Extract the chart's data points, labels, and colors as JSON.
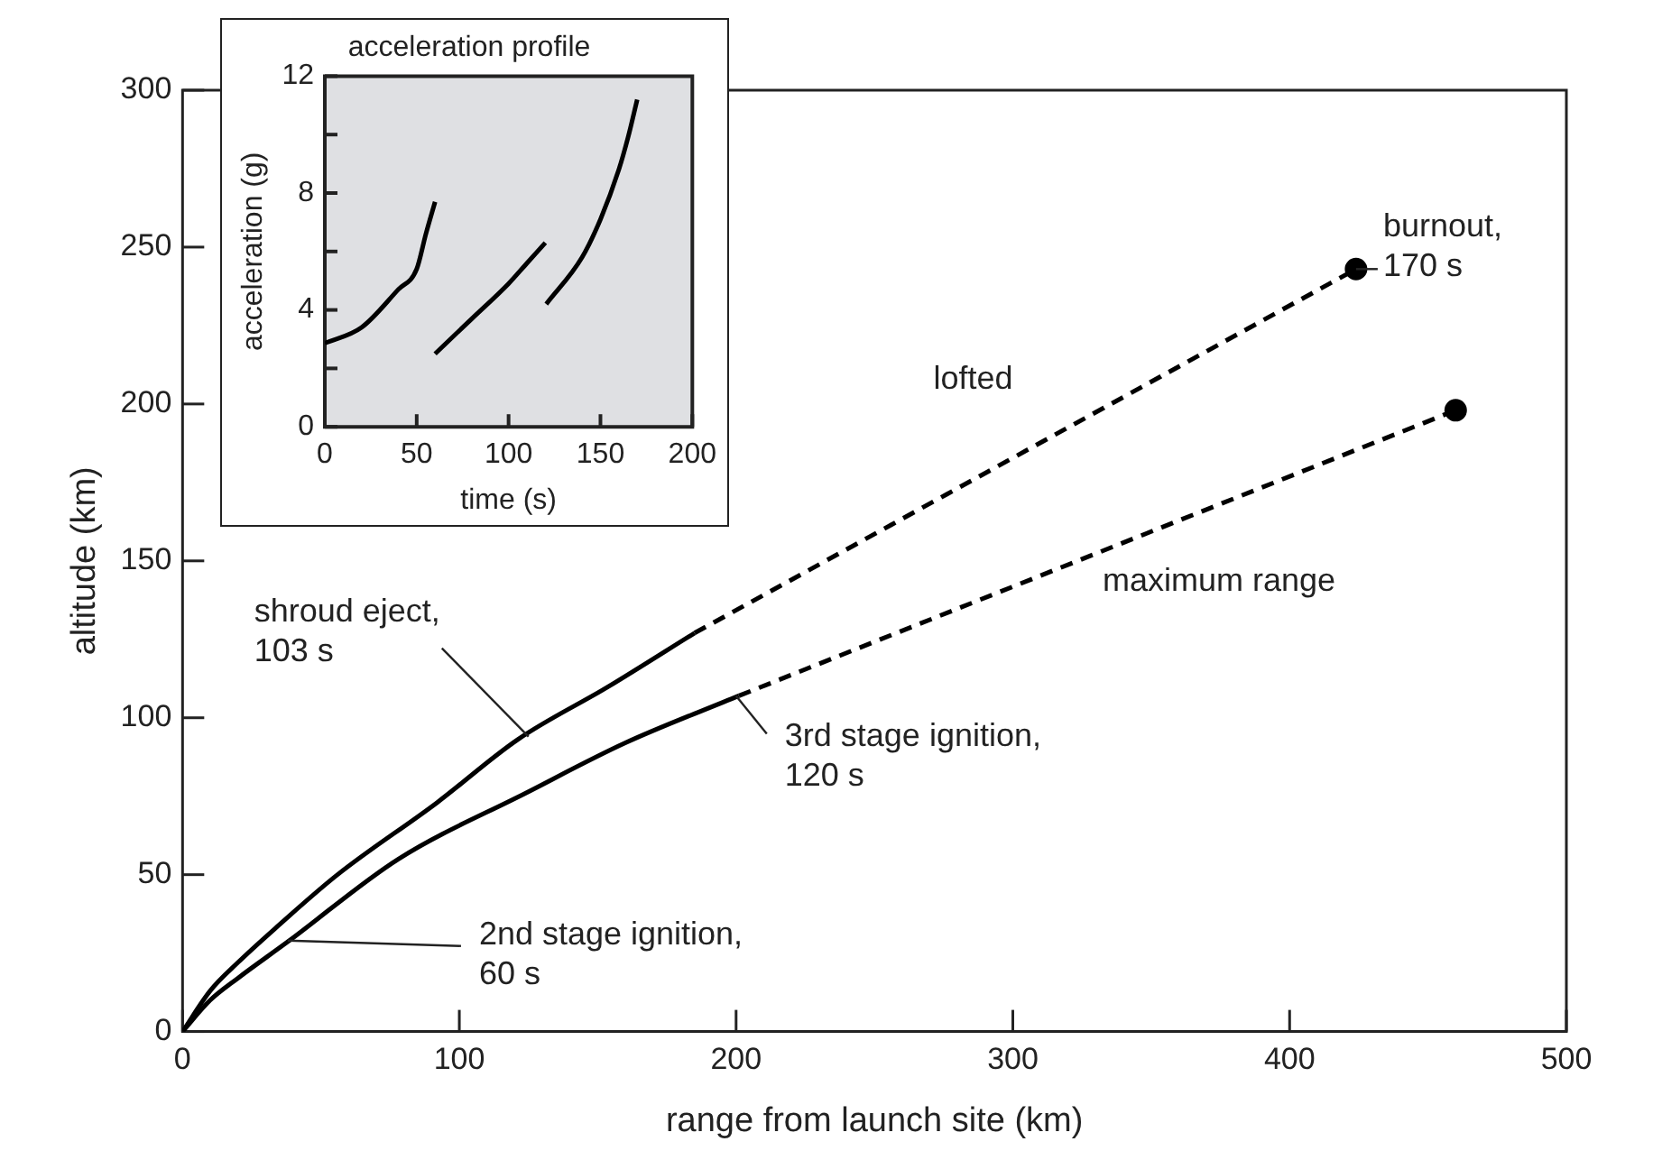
{
  "chart_data": [
    {
      "type": "line",
      "xlabel": "range from launch site (km)",
      "ylabel": "altitude (km)",
      "xlim": [
        0,
        500
      ],
      "xticks": [
        0,
        100,
        200,
        300,
        400,
        500
      ],
      "ylim": [
        0,
        300
      ],
      "yticks": [
        0,
        50,
        100,
        150,
        200,
        250,
        300
      ],
      "grid": false,
      "legend": false,
      "series": [
        {
          "color": "#000000",
          "line_style": "solid",
          "marker": "none",
          "x": [
            0,
            10,
            20,
            33,
            56,
            92,
            121,
            154,
            185
          ],
          "values": [
            0,
            13,
            22,
            32.5,
            50,
            73,
            93,
            110,
            127
          ]
        },
        {
          "color": "#000000",
          "line_style": "solid",
          "marker": "none",
          "x": [
            0,
            10,
            20,
            38,
            78,
            124,
            160,
            201
          ],
          "values": [
            0,
            10,
            17,
            28.6,
            55,
            76,
            92,
            107
          ]
        },
        {
          "color": "#000000",
          "line_style": "dashed",
          "marker": "none",
          "x": [
            185,
            424
          ],
          "values": [
            127,
            243
          ]
        },
        {
          "color": "#000000",
          "line_style": "dashed",
          "marker": "none",
          "x": [
            201,
            460
          ],
          "values": [
            107,
            198
          ]
        },
        {
          "type": "scatter",
          "color": "#000000",
          "marker": "circle",
          "x": [
            424,
            460
          ],
          "values": [
            243,
            198
          ]
        }
      ],
      "annotations": [
        {
          "text": "shroud eject,\n103 s",
          "x": 125,
          "y": 94
        },
        {
          "text": "lofted",
          "x": 300,
          "y": 183
        },
        {
          "text": "maximum range",
          "x": 350,
          "y": 160
        },
        {
          "text": "3rd stage ignition,\n120 s",
          "x": 200,
          "y": 107
        },
        {
          "text": "2nd stage ignition,\n60 s",
          "x": 38,
          "y": 29
        },
        {
          "text": "burnout,\n170 s",
          "x": 424,
          "y": 243
        }
      ]
    },
    {
      "type": "line",
      "title": "acceleration profile",
      "xlabel": "time (s)",
      "ylabel": "acceleration (g)",
      "xlim": [
        0,
        200
      ],
      "xticks": [
        0,
        50,
        100,
        150,
        200
      ],
      "ylim": [
        0,
        12
      ],
      "yticks": [
        0,
        {
          "value": 2,
          "label": null
        },
        4,
        {
          "value": 6,
          "label": null
        },
        8,
        {
          "value": 10,
          "label": null
        },
        12
      ],
      "grid": false,
      "legend": false,
      "series": [
        {
          "color": "#000000",
          "line_style": "solid",
          "marker": "none",
          "x": [
            0,
            20,
            40,
            50,
            55,
            60
          ],
          "values": [
            2.86,
            3.4,
            4.7,
            5.4,
            6.6,
            7.7
          ]
        },
        {
          "color": "#000000",
          "line_style": "solid",
          "marker": "none",
          "x": [
            60,
            80,
            100,
            110,
            120
          ],
          "values": [
            2.5,
            3.7,
            4.9,
            5.6,
            6.3
          ]
        },
        {
          "color": "#000000",
          "line_style": "solid",
          "marker": "none",
          "x": [
            120.5,
            140,
            150,
            160,
            165,
            170
          ],
          "values": [
            4.2,
            5.8,
            7.1,
            8.8,
            9.9,
            11.2
          ]
        }
      ]
    }
  ]
}
